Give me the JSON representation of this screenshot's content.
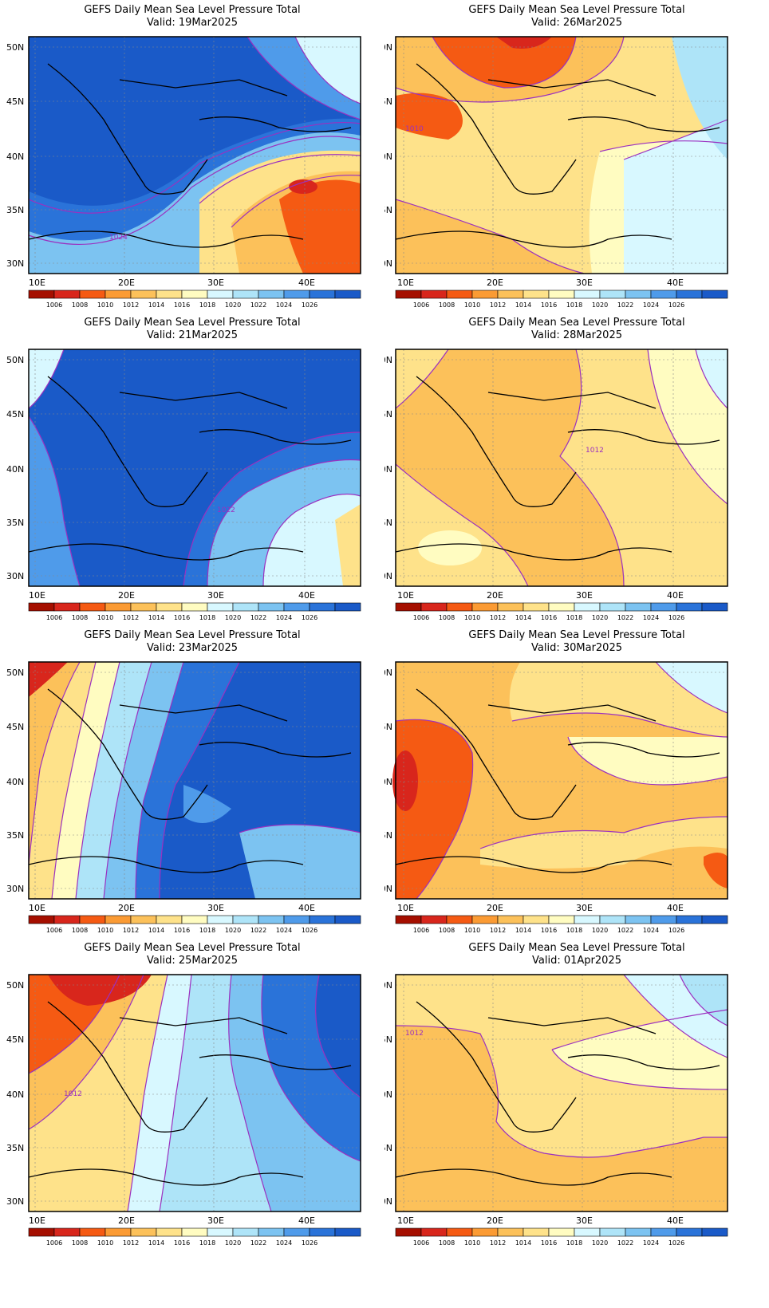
{
  "legend": {
    "levels": [
      "1006",
      "1008",
      "1010",
      "1012",
      "1014",
      "1016",
      "1018",
      "1020",
      "1022",
      "1024",
      "1026"
    ],
    "colors": [
      "#a50f00",
      "#d8261c",
      "#f55a13",
      "#fb9b34",
      "#fcc15a",
      "#fee28a",
      "#fffcc1",
      "#d8f8ff",
      "#aee4f8",
      "#7cc3f1",
      "#4f9bea",
      "#2a73d9",
      "#1a5ac8"
    ]
  },
  "axes": {
    "lat_labels": [
      "50N",
      "45N",
      "40N",
      "35N",
      "30N"
    ],
    "lon_labels": [
      "10E",
      "20E",
      "30E",
      "40E"
    ]
  },
  "panels": [
    {
      "title": "GEFS Daily Mean Sea Level Pressure Total",
      "valid": "Valid: 19Mar2025",
      "contour_label": "1024",
      "regime": "high"
    },
    {
      "title": "GEFS Daily Mean Sea Level Pressure Total",
      "valid": "Valid: 26Mar2025",
      "contour_label": "1010",
      "regime": "low"
    },
    {
      "title": "GEFS Daily Mean Sea Level Pressure Total",
      "valid": "Valid: 21Mar2025",
      "contour_label": "1022",
      "regime": "high"
    },
    {
      "title": "GEFS Daily Mean Sea Level Pressure Total",
      "valid": "Valid: 28Mar2025",
      "contour_label": "1012",
      "regime": "mid"
    },
    {
      "title": "GEFS Daily Mean Sea Level Pressure Total",
      "valid": "Valid: 23Mar2025",
      "contour_label": "",
      "regime": "gradient"
    },
    {
      "title": "GEFS Daily Mean Sea Level Pressure Total",
      "valid": "Valid: 30Mar2025",
      "contour_label": "",
      "regime": "mid"
    },
    {
      "title": "GEFS Daily Mean Sea Level Pressure Total",
      "valid": "Valid: 25Mar2025",
      "contour_label": "1012",
      "regime": "gradient"
    },
    {
      "title": "GEFS Daily Mean Sea Level Pressure Total",
      "valid": "Valid: 01Apr2025",
      "contour_label": "1012",
      "regime": "mid"
    }
  ]
}
